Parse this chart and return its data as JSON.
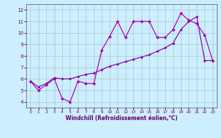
{
  "xlabel": "Windchill (Refroidissement éolien,°C)",
  "bg_color": "#cceeff",
  "grid_color": "#aacccc",
  "line_color": "#aa00aa",
  "line_color2": "#8800aa",
  "xlim": [
    -0.5,
    23.5
  ],
  "ylim": [
    3.5,
    12.5
  ],
  "xticks": [
    0,
    1,
    2,
    3,
    4,
    5,
    6,
    7,
    8,
    9,
    10,
    11,
    12,
    13,
    14,
    15,
    16,
    17,
    18,
    19,
    20,
    21,
    22,
    23
  ],
  "yticks": [
    4,
    5,
    6,
    7,
    8,
    9,
    10,
    11,
    12
  ],
  "curve1_x": [
    0,
    1,
    2,
    3,
    4,
    5,
    6,
    7,
    8,
    9,
    10,
    11,
    12,
    13,
    14,
    15,
    16,
    17,
    18,
    19,
    20,
    21,
    22,
    23
  ],
  "curve1_y": [
    5.8,
    5.0,
    5.5,
    6.0,
    4.3,
    4.0,
    5.8,
    5.6,
    5.6,
    8.5,
    9.7,
    11.0,
    9.6,
    11.0,
    11.0,
    11.0,
    9.6,
    9.6,
    10.3,
    11.7,
    11.1,
    10.8,
    9.8,
    7.6
  ],
  "curve2_x": [
    0,
    1,
    2,
    3,
    4,
    5,
    6,
    7,
    8,
    9,
    10,
    11,
    12,
    13,
    14,
    15,
    16,
    17,
    18,
    19,
    20,
    21,
    22,
    23
  ],
  "curve2_y": [
    5.8,
    5.3,
    5.6,
    6.1,
    6.0,
    6.0,
    6.2,
    6.4,
    6.5,
    6.8,
    7.1,
    7.3,
    7.5,
    7.7,
    7.9,
    8.1,
    8.4,
    8.7,
    9.1,
    10.3,
    11.0,
    11.4,
    7.6,
    7.6
  ]
}
